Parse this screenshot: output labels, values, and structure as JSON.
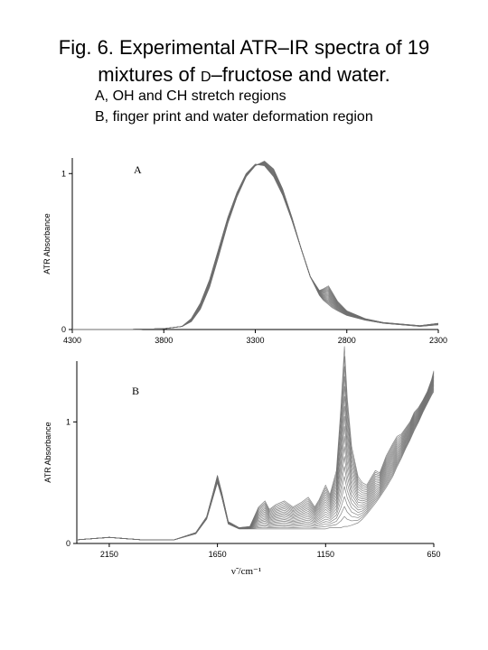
{
  "figure": {
    "title_part1": "Fig. 6. Experimental ATR–IR spectra of 19",
    "title_part2a": "mixtures of ",
    "title_part2b": "D",
    "title_part2c": "–fructose and water.",
    "subtitle1": "A, OH and CH stretch regions",
    "subtitle2": "B, finger print and water deformation region"
  },
  "colors": {
    "curve": "#6e6e6e",
    "axis": "#000000",
    "background": "#ffffff"
  },
  "chart_data": [
    {
      "type": "line",
      "panel_label": "A",
      "xlabel": "",
      "ylabel": "ATR Absorbance",
      "xlim": [
        4300,
        2300
      ],
      "ylim": [
        0,
        1.1
      ],
      "x_reversed": true,
      "xticks": [
        "4300",
        "3800",
        "3300",
        "2800",
        "2300"
      ],
      "yticks": [
        "0",
        "1"
      ],
      "grid": false,
      "series_count": 19,
      "x": [
        4300,
        4000,
        3800,
        3700,
        3650,
        3600,
        3550,
        3500,
        3450,
        3400,
        3350,
        3300,
        3250,
        3200,
        3150,
        3100,
        3050,
        3000,
        2950,
        2930,
        2900,
        2880,
        2850,
        2800,
        2700,
        2600,
        2500,
        2400,
        2300
      ],
      "envelope_low": [
        0.0,
        0.0,
        0.005,
        0.02,
        0.07,
        0.17,
        0.32,
        0.52,
        0.72,
        0.88,
        1.0,
        1.06,
        1.05,
        0.98,
        0.86,
        0.7,
        0.52,
        0.34,
        0.22,
        0.19,
        0.16,
        0.14,
        0.12,
        0.09,
        0.06,
        0.04,
        0.03,
        0.02,
        0.03
      ],
      "envelope_high": [
        0.0,
        0.0,
        0.005,
        0.02,
        0.05,
        0.13,
        0.27,
        0.47,
        0.68,
        0.85,
        0.98,
        1.05,
        1.08,
        1.03,
        0.9,
        0.72,
        0.52,
        0.34,
        0.25,
        0.26,
        0.28,
        0.24,
        0.18,
        0.12,
        0.07,
        0.045,
        0.035,
        0.025,
        0.04
      ]
    },
    {
      "type": "line",
      "panel_label": "B",
      "xlabel": "ν̃ /cm⁻¹",
      "ylabel": "ATR Absorbance",
      "xlim": [
        2300,
        650
      ],
      "ylim": [
        0,
        1.5
      ],
      "x_reversed": true,
      "xticks": [
        "2150",
        "1650",
        "1150",
        "650"
      ],
      "yticks": [
        "0",
        "1"
      ],
      "grid": false,
      "series_count": 19,
      "x": [
        2300,
        2150,
        2000,
        1850,
        1750,
        1700,
        1670,
        1650,
        1630,
        1600,
        1550,
        1500,
        1460,
        1430,
        1410,
        1380,
        1340,
        1300,
        1260,
        1230,
        1200,
        1180,
        1150,
        1130,
        1100,
        1080,
        1063,
        1050,
        1030,
        1000,
        980,
        960,
        920,
        900,
        870,
        840,
        820,
        800,
        780,
        760,
        740,
        720,
        700,
        680,
        660,
        650
      ],
      "envelope_low": [
        0.03,
        0.05,
        0.03,
        0.03,
        0.08,
        0.2,
        0.38,
        0.5,
        0.38,
        0.16,
        0.12,
        0.12,
        0.12,
        0.12,
        0.12,
        0.12,
        0.12,
        0.12,
        0.12,
        0.12,
        0.12,
        0.12,
        0.12,
        0.13,
        0.13,
        0.13,
        0.14,
        0.14,
        0.15,
        0.17,
        0.2,
        0.24,
        0.33,
        0.38,
        0.46,
        0.55,
        0.63,
        0.7,
        0.78,
        0.85,
        0.93,
        1.0,
        1.08,
        1.15,
        1.22,
        1.25
      ],
      "envelope_high": [
        0.03,
        0.05,
        0.03,
        0.03,
        0.09,
        0.22,
        0.42,
        0.56,
        0.42,
        0.18,
        0.13,
        0.14,
        0.3,
        0.35,
        0.28,
        0.32,
        0.35,
        0.3,
        0.34,
        0.38,
        0.3,
        0.36,
        0.48,
        0.4,
        0.6,
        1.1,
        1.62,
        1.2,
        0.8,
        0.55,
        0.5,
        0.48,
        0.6,
        0.58,
        0.72,
        0.82,
        0.88,
        0.9,
        0.95,
        1.0,
        1.08,
        1.12,
        1.18,
        1.25,
        1.35,
        1.42
      ]
    }
  ]
}
